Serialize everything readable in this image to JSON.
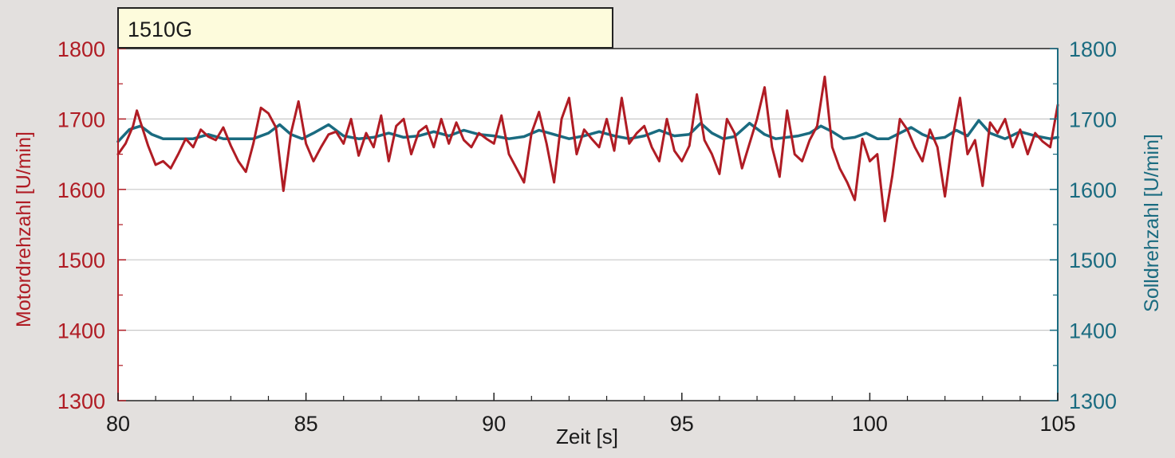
{
  "chart_data": {
    "type": "line",
    "title": "1510G",
    "xlabel": "Zeit [s]",
    "ylabel_left": "Motordrehzahl [U/min]",
    "ylabel_right": "Solldrehzahl [U/min]",
    "xlim": [
      80,
      105
    ],
    "ylim": [
      1300,
      1800
    ],
    "x_ticks": [
      "80",
      "85",
      "90",
      "95",
      "100",
      "105"
    ],
    "y_ticks": [
      "1300",
      "1400",
      "1500",
      "1600",
      "1700",
      "1800"
    ],
    "grid": "horizontal",
    "colors": {
      "left_axis": "#b01c24",
      "right_axis": "#1a6b80",
      "background": "#e3e0de",
      "plot_background": "#ffffff",
      "title_box": "#fdfbdc",
      "grid": "#c8c8c8"
    },
    "series": [
      {
        "name": "Motordrehzahl",
        "axis": "left",
        "color": "#b01c24",
        "x": [
          80.0,
          80.2,
          80.4,
          80.5,
          80.6,
          80.8,
          81.0,
          81.2,
          81.4,
          81.6,
          81.8,
          82.0,
          82.2,
          82.4,
          82.6,
          82.8,
          83.0,
          83.2,
          83.4,
          83.6,
          83.8,
          84.0,
          84.2,
          84.4,
          84.6,
          84.8,
          85.0,
          85.2,
          85.4,
          85.6,
          85.8,
          86.0,
          86.2,
          86.4,
          86.6,
          86.8,
          87.0,
          87.2,
          87.4,
          87.6,
          87.8,
          88.0,
          88.2,
          88.4,
          88.6,
          88.8,
          89.0,
          89.2,
          89.4,
          89.6,
          89.8,
          90.0,
          90.2,
          90.4,
          90.6,
          90.8,
          91.0,
          91.2,
          91.4,
          91.6,
          91.8,
          92.0,
          92.2,
          92.4,
          92.6,
          92.8,
          93.0,
          93.2,
          93.4,
          93.6,
          93.8,
          94.0,
          94.2,
          94.4,
          94.6,
          94.8,
          95.0,
          95.2,
          95.4,
          95.6,
          95.8,
          96.0,
          96.2,
          96.4,
          96.6,
          96.8,
          97.0,
          97.2,
          97.4,
          97.6,
          97.8,
          98.0,
          98.2,
          98.4,
          98.6,
          98.8,
          99.0,
          99.2,
          99.4,
          99.6,
          99.8,
          100.0,
          100.2,
          100.4,
          100.6,
          100.8,
          101.0,
          101.2,
          101.4,
          101.6,
          101.8,
          102.0,
          102.2,
          102.4,
          102.6,
          102.8,
          103.0,
          103.2,
          103.4,
          103.6,
          103.8,
          104.0,
          104.2,
          104.4,
          104.6,
          104.8,
          105.0
        ],
        "values": [
          1650,
          1665,
          1690,
          1712,
          1695,
          1662,
          1635,
          1640,
          1630,
          1650,
          1672,
          1660,
          1685,
          1675,
          1670,
          1688,
          1662,
          1640,
          1625,
          1665,
          1716,
          1708,
          1688,
          1598,
          1680,
          1725,
          1665,
          1640,
          1660,
          1678,
          1682,
          1665,
          1700,
          1648,
          1680,
          1660,
          1705,
          1640,
          1690,
          1700,
          1650,
          1682,
          1690,
          1660,
          1700,
          1665,
          1695,
          1670,
          1660,
          1680,
          1672,
          1665,
          1705,
          1650,
          1630,
          1610,
          1680,
          1710,
          1665,
          1610,
          1700,
          1730,
          1650,
          1685,
          1672,
          1660,
          1700,
          1655,
          1730,
          1665,
          1680,
          1690,
          1660,
          1640,
          1700,
          1655,
          1640,
          1662,
          1735,
          1670,
          1650,
          1622,
          1700,
          1680,
          1630,
          1665,
          1700,
          1745,
          1660,
          1618,
          1712,
          1650,
          1640,
          1670,
          1690,
          1760,
          1660,
          1630,
          1610,
          1585,
          1672,
          1640,
          1650,
          1555,
          1620,
          1700,
          1685,
          1660,
          1640,
          1685,
          1660,
          1590,
          1672,
          1730,
          1650,
          1670,
          1605,
          1695,
          1680,
          1700,
          1660,
          1685,
          1650,
          1680,
          1668,
          1660,
          1720
        ]
      },
      {
        "name": "Solldrehzahl",
        "axis": "right",
        "color": "#1a6b80",
        "x": [
          80.0,
          80.3,
          80.6,
          80.9,
          81.2,
          81.6,
          82.0,
          82.4,
          82.8,
          83.2,
          83.6,
          84.0,
          84.3,
          84.6,
          84.9,
          85.2,
          85.6,
          86.0,
          86.4,
          86.8,
          87.2,
          87.6,
          88.0,
          88.4,
          88.8,
          89.2,
          89.6,
          90.0,
          90.4,
          90.8,
          91.2,
          91.6,
          92.0,
          92.4,
          92.8,
          93.2,
          93.6,
          94.0,
          94.4,
          94.8,
          95.2,
          95.5,
          95.8,
          96.1,
          96.4,
          96.8,
          97.2,
          97.5,
          97.8,
          98.1,
          98.4,
          98.7,
          99.0,
          99.3,
          99.6,
          99.9,
          100.2,
          100.5,
          100.8,
          101.1,
          101.4,
          101.7,
          102.0,
          102.3,
          102.6,
          102.9,
          103.2,
          103.6,
          104.0,
          104.4,
          104.8,
          105.0
        ],
        "values": [
          1668,
          1685,
          1690,
          1678,
          1672,
          1672,
          1672,
          1678,
          1672,
          1672,
          1672,
          1680,
          1692,
          1678,
          1672,
          1680,
          1692,
          1676,
          1672,
          1674,
          1680,
          1674,
          1676,
          1682,
          1676,
          1684,
          1678,
          1676,
          1672,
          1675,
          1684,
          1678,
          1672,
          1676,
          1682,
          1676,
          1672,
          1676,
          1684,
          1676,
          1678,
          1694,
          1680,
          1672,
          1675,
          1694,
          1678,
          1672,
          1674,
          1676,
          1680,
          1690,
          1682,
          1672,
          1674,
          1680,
          1672,
          1672,
          1680,
          1688,
          1678,
          1672,
          1674,
          1684,
          1676,
          1698,
          1680,
          1672,
          1682,
          1676,
          1672,
          1674
        ]
      }
    ]
  }
}
